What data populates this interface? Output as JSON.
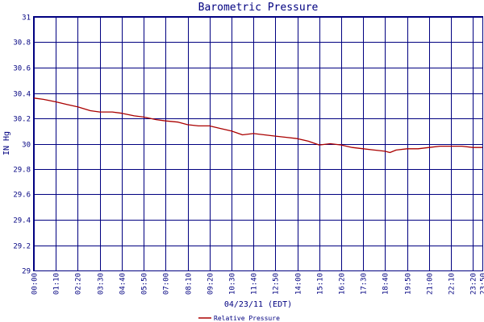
{
  "chart_data": {
    "type": "line",
    "title": "Barometric Pressure",
    "xlabel": "04/23/11 (EDT)",
    "ylabel": "IN Hg",
    "ylim": [
      29,
      31
    ],
    "yticks": [
      "29",
      "29.2",
      "29.4",
      "29.6",
      "29.8",
      "30",
      "30.2",
      "30.4",
      "30.6",
      "30.8",
      "31"
    ],
    "xlim_minutes": [
      0,
      1430
    ],
    "xticks": [
      "00:00",
      "01:10",
      "02:20",
      "03:30",
      "04:40",
      "05:50",
      "07:00",
      "08:10",
      "09:20",
      "10:30",
      "11:40",
      "12:50",
      "14:00",
      "15:10",
      "16:20",
      "17:30",
      "18:40",
      "19:50",
      "21:00",
      "22:10",
      "23:20",
      "23:50"
    ],
    "grid": true,
    "legend": "bottom",
    "series": [
      {
        "name": "Relative Pressure",
        "color": "#aa0000",
        "x": [
          "00:00",
          "00:30",
          "01:10",
          "01:45",
          "02:20",
          "03:00",
          "03:30",
          "04:10",
          "04:40",
          "05:20",
          "05:50",
          "06:30",
          "07:00",
          "07:40",
          "08:10",
          "08:45",
          "09:20",
          "09:55",
          "10:30",
          "11:05",
          "11:40",
          "12:15",
          "12:50",
          "13:25",
          "14:00",
          "14:35",
          "15:10",
          "15:45",
          "16:20",
          "16:55",
          "17:30",
          "18:05",
          "18:40",
          "18:55",
          "19:15",
          "19:50",
          "20:25",
          "21:00",
          "21:35",
          "22:10",
          "22:45",
          "23:20",
          "23:50"
        ],
        "values": [
          30.36,
          30.35,
          30.33,
          30.31,
          30.29,
          30.26,
          30.25,
          30.25,
          30.24,
          30.22,
          30.21,
          30.19,
          30.18,
          30.17,
          30.15,
          30.14,
          30.14,
          30.12,
          30.1,
          30.07,
          30.08,
          30.07,
          30.06,
          30.05,
          30.04,
          30.02,
          29.99,
          30.0,
          29.99,
          29.97,
          29.96,
          29.95,
          29.94,
          29.93,
          29.95,
          29.96,
          29.96,
          29.97,
          29.98,
          29.98,
          29.98,
          29.97,
          29.97
        ]
      }
    ]
  }
}
